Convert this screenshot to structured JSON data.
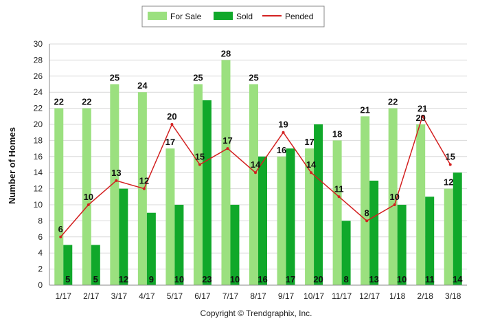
{
  "chart_data": {
    "type": "bar",
    "categories": [
      "1/17",
      "2/17",
      "3/17",
      "4/17",
      "5/17",
      "6/17",
      "7/17",
      "8/17",
      "9/17",
      "10/17",
      "11/17",
      "12/17",
      "1/18",
      "2/18",
      "3/18"
    ],
    "series": [
      {
        "name": "For Sale",
        "type": "bar",
        "color": "#9be07f",
        "values": [
          22,
          22,
          25,
          24,
          17,
          25,
          28,
          25,
          16,
          17,
          18,
          21,
          22,
          20,
          12
        ]
      },
      {
        "name": "Sold",
        "type": "bar",
        "color": "#10a82a",
        "values": [
          5,
          5,
          12,
          9,
          10,
          23,
          10,
          16,
          17,
          20,
          8,
          13,
          10,
          11,
          14
        ]
      },
      {
        "name": "Pended",
        "type": "line",
        "color": "#d32020",
        "values": [
          6,
          10,
          13,
          12,
          20,
          15,
          17,
          14,
          19,
          14,
          11,
          8,
          10,
          21,
          15
        ]
      }
    ],
    "ylabel": "Number of Homes",
    "yticks": [
      0,
      2,
      4,
      6,
      8,
      10,
      12,
      14,
      16,
      18,
      20,
      22,
      24,
      26,
      28,
      30
    ],
    "ylim": [
      0,
      30
    ],
    "grid": true,
    "legend_position": "top-center"
  },
  "footer": {
    "copyright": "Copyright © Trendgraphix, Inc."
  }
}
